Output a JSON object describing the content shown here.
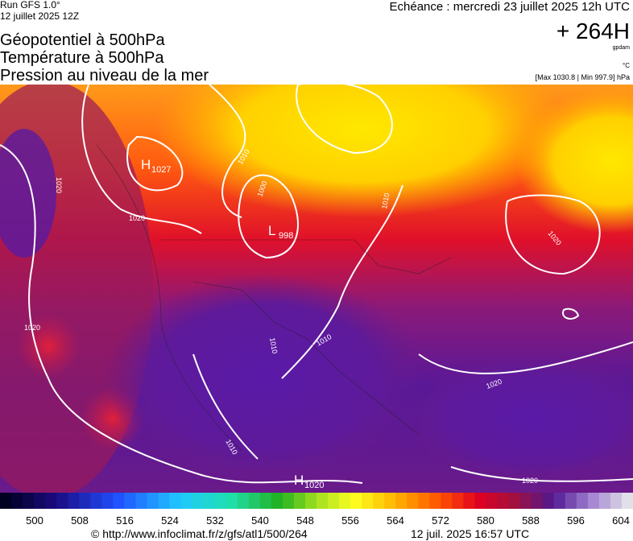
{
  "header": {
    "run": "Run GFS 1.0°",
    "run_date": "12 juillet 2025 12Z",
    "echeance": "Echéance : mercredi 23 juillet 2025 12h UTC",
    "lead": "+ 264H",
    "unit_gp": "gpdam",
    "unit_t": "°C",
    "range": "[Max 1030.8 | Min 997.9] hPa",
    "titles": [
      "Géopotentiel à 500hPa",
      "Température à 500hPa",
      "Pression au niveau de la mer"
    ]
  },
  "map": {
    "centers": [
      {
        "letter": "H",
        "value": "1027"
      },
      {
        "letter": "L",
        "value": "998"
      },
      {
        "letter": "H",
        "value": "1020"
      }
    ],
    "isobar_labels": [
      "1020",
      "1020",
      "1010",
      "1000",
      "1010",
      "1020",
      "1010",
      "1010",
      "1020",
      "1020",
      "1010",
      "1020"
    ]
  },
  "colorbar": {
    "labels": [
      500,
      508,
      516,
      524,
      532,
      540,
      548,
      556,
      564,
      572,
      580,
      588,
      596,
      604
    ]
  },
  "footer": {
    "url": "© http://www.infoclimat.fr/z/gfs/atl1/500/264",
    "generated": "12 juil. 2025 16:57 UTC"
  }
}
